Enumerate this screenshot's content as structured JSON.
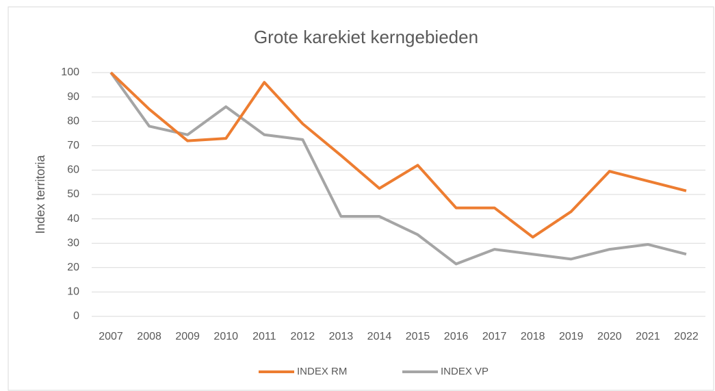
{
  "chart_data": {
    "type": "line",
    "title": "Grote karekiet kerngebieden",
    "y_label": "Index territoria",
    "categories": [
      "2007",
      "2008",
      "2009",
      "2010",
      "2011",
      "2012",
      "2013",
      "2014",
      "2015",
      "2016",
      "2017",
      "2018",
      "2019",
      "2020",
      "2021",
      "2022"
    ],
    "series": [
      {
        "name": "INDEX RM",
        "color": "#ed7d31",
        "values": [
          100,
          85,
          72,
          73,
          96,
          79,
          66,
          52.5,
          62,
          44.5,
          44.5,
          32.5,
          43,
          59.5,
          55.5,
          51.5
        ]
      },
      {
        "name": "INDEX VP",
        "color": "#a5a5a5",
        "values": [
          100,
          78,
          74.5,
          86,
          74.5,
          72.5,
          41,
          41,
          33.5,
          21.5,
          27.5,
          25.5,
          23.5,
          27.5,
          29.5,
          25.5
        ]
      }
    ],
    "ylim": [
      0,
      100
    ],
    "yticks": [
      0,
      10,
      20,
      30,
      40,
      50,
      60,
      70,
      80,
      90,
      100
    ],
    "grid": true,
    "legend": "bottom"
  }
}
